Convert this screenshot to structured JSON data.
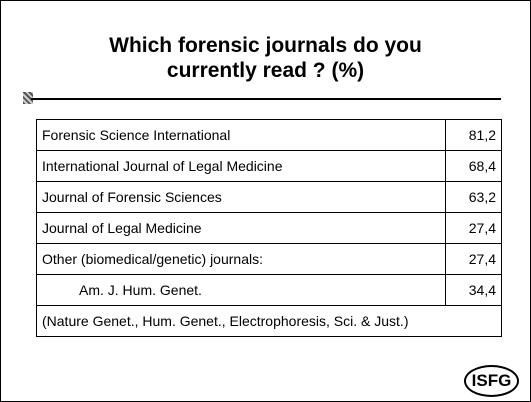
{
  "header": {
    "title_lines": [
      "Which forensic journals do you",
      "currently read ? (%)"
    ]
  },
  "table": {
    "rows": [
      [
        "Forensic Science International",
        "81,2"
      ],
      [
        "International Journal of Legal Medicine",
        "68,4"
      ],
      [
        "Journal of Forensic Sciences",
        "63,2"
      ],
      [
        "Journal of Legal Medicine",
        "27,4"
      ],
      [
        "Other (biomedical/genetic) journals:",
        "27,4"
      ],
      [
        "Am. J. Hum. Genet.",
        "34,4"
      ],
      [
        "(Nature Genet., Hum. Genet., Electrophoresis, Sci. & Just.)"
      ]
    ]
  },
  "logo": {
    "text": "ISFG"
  }
}
